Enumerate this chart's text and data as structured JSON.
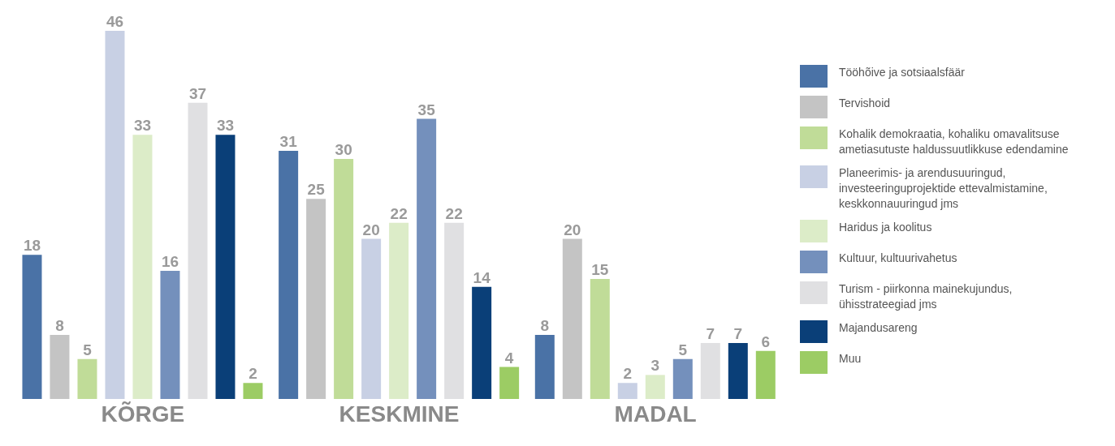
{
  "chart_data": {
    "type": "bar",
    "categories": [
      "KÕRGE",
      "KESKMINE",
      "MADAL"
    ],
    "series": [
      {
        "name": "Tööhõive ja sotsiaalsfäär",
        "color": "#4a72a6",
        "values": [
          18,
          31,
          8
        ]
      },
      {
        "name": "Tervishoid",
        "color": "#c4c4c4",
        "values": [
          8,
          25,
          20
        ]
      },
      {
        "name": "Kohalik demokraatia, kohaliku omavalitsuse ametiasutuste haldussuutlikkuse edendamine",
        "color": "#c0dc98",
        "values": [
          5,
          30,
          15
        ]
      },
      {
        "name": "Planeerimis- ja arendusuuringud, investeeringuprojektide ettevalmistamine, keskkonnauuringud jms",
        "color": "#c8d0e4",
        "values": [
          46,
          20,
          2
        ]
      },
      {
        "name": "Haridus ja koolitus",
        "color": "#dcecc8",
        "values": [
          33,
          22,
          3
        ]
      },
      {
        "name": "Kultuur, kultuurivahetus",
        "color": "#7490bc",
        "values": [
          16,
          35,
          5
        ]
      },
      {
        "name": "Turism - piirkonna mainekujundus, ühisstrateegiad jms",
        "color": "#e0e0e2",
        "values": [
          37,
          22,
          7
        ]
      },
      {
        "name": "Majandusareng",
        "color": "#0a3f78",
        "values": [
          33,
          14,
          7
        ]
      },
      {
        "name": "Muu",
        "color": "#9ccc64",
        "values": [
          2,
          4,
          6
        ]
      }
    ],
    "data_labels": true,
    "legend": "right",
    "grid": false
  }
}
